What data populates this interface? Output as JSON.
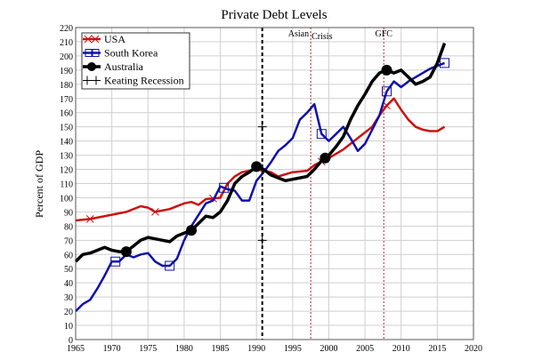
{
  "chart_data": {
    "type": "line",
    "title": "Private Debt Levels",
    "xlabel": "",
    "ylabel": "Percent of GDP",
    "xlim": [
      1965,
      2020
    ],
    "ylim": [
      0,
      220
    ],
    "xticks": [
      1965,
      1970,
      1975,
      1980,
      1985,
      1990,
      1995,
      2000,
      2005,
      2010,
      2015,
      2020
    ],
    "yticks": [
      0,
      10,
      20,
      30,
      40,
      50,
      60,
      70,
      80,
      90,
      100,
      110,
      120,
      130,
      140,
      150,
      160,
      170,
      180,
      190,
      200,
      210,
      220
    ],
    "grid": true,
    "legend_position": "top-left",
    "series": [
      {
        "name": "USA",
        "color": "#cc1111",
        "marker": "x",
        "x": [
          1965,
          1967,
          1970,
          1972,
          1974,
          1975,
          1976,
          1978,
          1980,
          1981,
          1982,
          1983,
          1985,
          1986,
          1987,
          1988,
          1990,
          1992,
          1993,
          1995,
          1997,
          1998,
          2000,
          2002,
          2004,
          2006,
          2007,
          2008,
          2009,
          2010,
          2011,
          2012,
          2013,
          2014,
          2015,
          2016
        ],
        "y": [
          84,
          85,
          88,
          90,
          94,
          93,
          90,
          92,
          96,
          97,
          95,
          99,
          100,
          110,
          115,
          118,
          120,
          118,
          115,
          118,
          119,
          123,
          128,
          134,
          142,
          150,
          158,
          165,
          170,
          162,
          155,
          150,
          148,
          147,
          147,
          150
        ]
      },
      {
        "name": "South Korea",
        "color": "#1111aa",
        "marker": "square",
        "x": [
          1965,
          1966,
          1967,
          1968,
          1969,
          1970,
          1971,
          1972,
          1973,
          1974,
          1975,
          1976,
          1977,
          1978,
          1979,
          1980,
          1981,
          1982,
          1983,
          1984,
          1985,
          1986,
          1987,
          1988,
          1989,
          1990,
          1991,
          1992,
          1993,
          1994,
          1995,
          1996,
          1997,
          1998,
          1999,
          2000,
          2001,
          2002,
          2003,
          2004,
          2005,
          2006,
          2007,
          2008,
          2009,
          2010,
          2011,
          2012,
          2013,
          2014,
          2015,
          2016
        ],
        "y": [
          20,
          25,
          28,
          36,
          45,
          55,
          55,
          60,
          58,
          60,
          61,
          55,
          52,
          52,
          57,
          70,
          80,
          88,
          96,
          98,
          108,
          106,
          105,
          98,
          98,
          112,
          118,
          125,
          133,
          137,
          142,
          155,
          160,
          166,
          145,
          140,
          145,
          150,
          142,
          133,
          138,
          148,
          158,
          175,
          182,
          178,
          182,
          185,
          188,
          191,
          193,
          195
        ]
      },
      {
        "name": "Australia",
        "color": "#000000",
        "marker": "circle",
        "x": [
          1965,
          1966,
          1967,
          1968,
          1969,
          1970,
          1971,
          1972,
          1973,
          1974,
          1975,
          1976,
          1977,
          1978,
          1979,
          1980,
          1981,
          1982,
          1983,
          1984,
          1985,
          1986,
          1987,
          1988,
          1989,
          1990,
          1991,
          1992,
          1993,
          1994,
          1995,
          1996,
          1997,
          1998,
          1999,
          2000,
          2001,
          2002,
          2003,
          2004,
          2005,
          2006,
          2007,
          2008,
          2009,
          2010,
          2011,
          2012,
          2013,
          2014,
          2015,
          2016
        ],
        "y": [
          55,
          60,
          61,
          63,
          65,
          63,
          62,
          62,
          66,
          70,
          72,
          71,
          70,
          69,
          73,
          75,
          77,
          82,
          87,
          86,
          90,
          98,
          110,
          115,
          118,
          122,
          120,
          116,
          114,
          112,
          113,
          114,
          115,
          120,
          126,
          130,
          136,
          143,
          155,
          165,
          173,
          182,
          188,
          190,
          188,
          190,
          185,
          180,
          182,
          185,
          195,
          209
        ]
      },
      {
        "name": "Keating Recession",
        "color": "#000000",
        "marker": "plus",
        "x": [
          1990.8,
          1990.8
        ],
        "y": [
          0,
          220
        ]
      }
    ],
    "markers": {
      "USA": [
        1967,
        1976,
        1984,
        1999,
        2008
      ],
      "South Korea": [
        1970.5,
        1978,
        1985.5,
        1999,
        2008,
        2016
      ],
      "Australia": [
        1972,
        1981,
        1990,
        1999.5,
        2008
      ]
    },
    "annotations": [
      {
        "text": "Asian",
        "x": 1997.5
      },
      {
        "text": "Crisis",
        "x": 1997.5
      },
      {
        "text": "GFC",
        "x": 2007.6
      }
    ]
  }
}
